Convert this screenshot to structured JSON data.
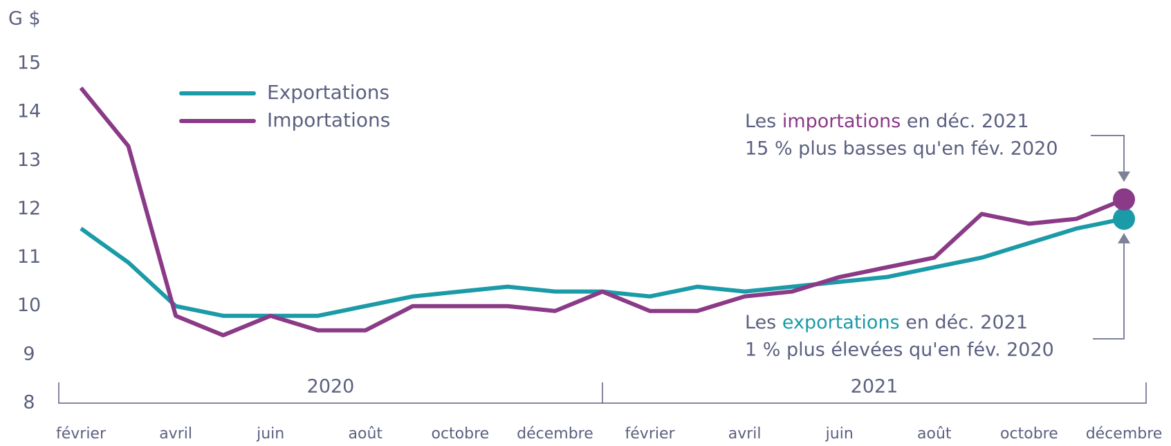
{
  "chart_data": {
    "type": "line",
    "y_label": "G $",
    "categories": [
      "février",
      null,
      "avril",
      null,
      "juin",
      null,
      "août",
      null,
      "octobre",
      null,
      "décembre",
      null,
      "février",
      null,
      "avril",
      null,
      "juin",
      null,
      "août",
      null,
      "octobre",
      null,
      "décembre"
    ],
    "years": [
      "2020",
      "2021"
    ],
    "series": [
      {
        "name": "Exportations",
        "color": "#1b9aa7",
        "values": [
          11.6,
          10.9,
          10.0,
          9.8,
          9.8,
          9.8,
          10.0,
          10.2,
          10.3,
          10.4,
          10.3,
          10.3,
          10.2,
          10.4,
          10.3,
          10.4,
          10.5,
          10.6,
          10.8,
          11.0,
          11.3,
          11.6,
          11.8
        ]
      },
      {
        "name": "Importations",
        "color": "#8a3a86",
        "values": [
          14.5,
          13.3,
          9.8,
          9.4,
          9.8,
          9.5,
          9.5,
          10.0,
          10.0,
          10.0,
          9.9,
          10.3,
          9.9,
          9.9,
          10.2,
          10.3,
          10.6,
          10.8,
          11.0,
          11.9,
          11.7,
          11.8,
          12.2
        ]
      }
    ],
    "annotations": [
      {
        "before": "Les ",
        "highlight": "importations",
        "after": " en déc. 2021",
        "line2": "15 % plus basses qu'en fév. 2020"
      },
      {
        "before": "Les ",
        "highlight": "exportations",
        "after": " en déc. 2021",
        "line2": "1 % plus élevées qu'en fév. 2020"
      }
    ],
    "ylim": [
      8,
      15
    ],
    "yticks": [
      8,
      9,
      10,
      11,
      12,
      13,
      14,
      15
    ]
  }
}
